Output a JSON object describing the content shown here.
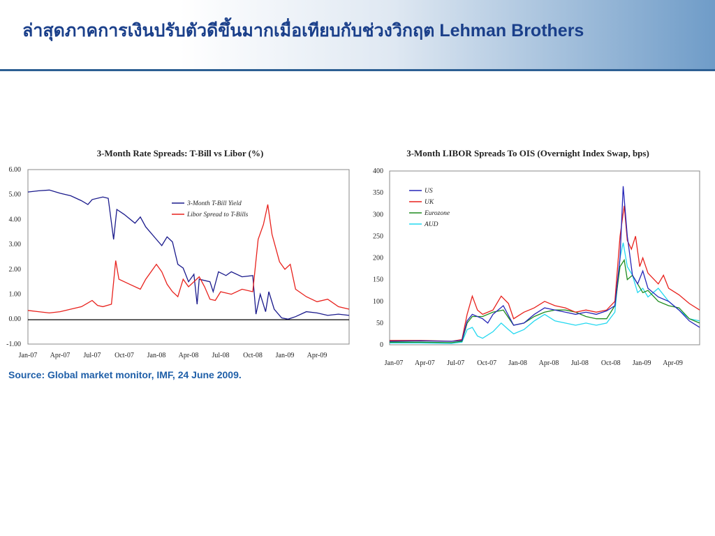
{
  "slide": {
    "title": "ล่าสุดภาคการเงินปรับตัวดีขึ้นมากเมื่อเทียบกับช่วงวิกฤต Lehman Brothers",
    "source": "Source: Global market monitor, IMF, 24 June 2009."
  },
  "chart_data": [
    {
      "type": "line",
      "title": "3-Month Rate Spreads: T-Bill vs Libor (%)",
      "ylim": [
        -1,
        6
      ],
      "xlim": [
        0,
        30
      ],
      "y_ticks": [
        "6.00",
        "5.00",
        "4.00",
        "3.00",
        "2.00",
        "1.00",
        "0.00",
        "-1.00"
      ],
      "x_ticks": [
        "Jan-07",
        "Apr-07",
        "Jul-07",
        "Oct-07",
        "Jan-08",
        "Apr-08",
        "Jul-08",
        "Oct-08",
        "Jan-09",
        "Apr-09"
      ],
      "grid": false,
      "legend_position": "top-right",
      "series": [
        {
          "name": "3-Month T-Bill Yield",
          "color": "#1a1a8c",
          "points": [
            [
              0,
              5.1
            ],
            [
              1,
              5.15
            ],
            [
              2,
              5.18
            ],
            [
              3,
              5.05
            ],
            [
              4,
              4.95
            ],
            [
              5,
              4.75
            ],
            [
              5.6,
              4.6
            ],
            [
              6,
              4.8
            ],
            [
              7,
              4.9
            ],
            [
              7.5,
              4.85
            ],
            [
              8,
              3.2
            ],
            [
              8.3,
              4.4
            ],
            [
              9,
              4.2
            ],
            [
              10,
              3.85
            ],
            [
              10.5,
              4.1
            ],
            [
              11,
              3.7
            ],
            [
              12,
              3.2
            ],
            [
              12.5,
              2.95
            ],
            [
              13,
              3.3
            ],
            [
              13.5,
              3.1
            ],
            [
              14,
              2.2
            ],
            [
              14.5,
              2.05
            ],
            [
              15,
              1.5
            ],
            [
              15.5,
              1.8
            ],
            [
              15.8,
              0.6
            ],
            [
              16,
              1.6
            ],
            [
              17,
              1.5
            ],
            [
              17.3,
              1.1
            ],
            [
              17.8,
              1.9
            ],
            [
              18.5,
              1.75
            ],
            [
              19,
              1.9
            ],
            [
              20,
              1.7
            ],
            [
              21,
              1.75
            ],
            [
              21.3,
              0.2
            ],
            [
              21.7,
              1.0
            ],
            [
              22.2,
              0.3
            ],
            [
              22.5,
              1.1
            ],
            [
              23,
              0.4
            ],
            [
              23.7,
              0.05
            ],
            [
              24.3,
              0.0
            ],
            [
              25,
              0.1
            ],
            [
              26,
              0.3
            ],
            [
              27,
              0.25
            ],
            [
              28,
              0.15
            ],
            [
              29,
              0.2
            ],
            [
              30,
              0.15
            ]
          ]
        },
        {
          "name": "Libor Spread to T-Bills",
          "color": "#e8211c",
          "points": [
            [
              0,
              0.35
            ],
            [
              1,
              0.3
            ],
            [
              2,
              0.25
            ],
            [
              3,
              0.3
            ],
            [
              4,
              0.4
            ],
            [
              5,
              0.5
            ],
            [
              6,
              0.75
            ],
            [
              6.5,
              0.55
            ],
            [
              7,
              0.5
            ],
            [
              7.8,
              0.6
            ],
            [
              8.2,
              2.35
            ],
            [
              8.5,
              1.6
            ],
            [
              9.5,
              1.4
            ],
            [
              10.5,
              1.2
            ],
            [
              11,
              1.6
            ],
            [
              12,
              2.2
            ],
            [
              12.5,
              1.9
            ],
            [
              13,
              1.4
            ],
            [
              13.5,
              1.1
            ],
            [
              14,
              0.9
            ],
            [
              14.5,
              1.6
            ],
            [
              15,
              1.3
            ],
            [
              15.5,
              1.5
            ],
            [
              16,
              1.7
            ],
            [
              16.5,
              1.3
            ],
            [
              17,
              0.8
            ],
            [
              17.5,
              0.75
            ],
            [
              18,
              1.1
            ],
            [
              19,
              1.0
            ],
            [
              20,
              1.2
            ],
            [
              21,
              1.1
            ],
            [
              21.5,
              3.2
            ],
            [
              22,
              3.8
            ],
            [
              22.4,
              4.6
            ],
            [
              22.8,
              3.4
            ],
            [
              23.5,
              2.3
            ],
            [
              24,
              2.0
            ],
            [
              24.5,
              2.2
            ],
            [
              25,
              1.2
            ],
            [
              26,
              0.9
            ],
            [
              27,
              0.7
            ],
            [
              28,
              0.8
            ],
            [
              29,
              0.5
            ],
            [
              30,
              0.4
            ]
          ]
        }
      ]
    },
    {
      "type": "line",
      "title": "3-Month LIBOR Spreads To OIS (Overnight Index Swap, bps)",
      "ylim": [
        0,
        400
      ],
      "xlim": [
        0,
        30
      ],
      "y_ticks": [
        "400",
        "350",
        "300",
        "250",
        "200",
        "150",
        "100",
        "50",
        "0"
      ],
      "x_ticks": [
        "Jan-07",
        "Apr-07",
        "Jul-07",
        "Oct-07",
        "Jan-08",
        "Apr-08",
        "Jul-08",
        "Oct-08",
        "Jan-09",
        "Apr-09"
      ],
      "grid": false,
      "legend_position": "top-left",
      "series": [
        {
          "name": "US",
          "color": "#2626b8",
          "points": [
            [
              0,
              8
            ],
            [
              3,
              9
            ],
            [
              6,
              8
            ],
            [
              7,
              10
            ],
            [
              7.5,
              55
            ],
            [
              8,
              70
            ],
            [
              9,
              60
            ],
            [
              9.5,
              50
            ],
            [
              10,
              70
            ],
            [
              11,
              90
            ],
            [
              12,
              45
            ],
            [
              13,
              50
            ],
            [
              14,
              70
            ],
            [
              15,
              85
            ],
            [
              16,
              80
            ],
            [
              17,
              75
            ],
            [
              18,
              70
            ],
            [
              19,
              75
            ],
            [
              20,
              70
            ],
            [
              21,
              78
            ],
            [
              21.8,
              90
            ],
            [
              22.3,
              200
            ],
            [
              22.6,
              365
            ],
            [
              23,
              250
            ],
            [
              23.5,
              160
            ],
            [
              24,
              140
            ],
            [
              24.5,
              170
            ],
            [
              25,
              130
            ],
            [
              26,
              110
            ],
            [
              27,
              100
            ],
            [
              28,
              80
            ],
            [
              29,
              55
            ],
            [
              30,
              40
            ]
          ]
        },
        {
          "name": "UK",
          "color": "#e8211c",
          "points": [
            [
              0,
              10
            ],
            [
              3,
              10
            ],
            [
              6,
              8
            ],
            [
              7,
              12
            ],
            [
              7.5,
              70
            ],
            [
              8,
              112
            ],
            [
              8.5,
              80
            ],
            [
              9,
              70
            ],
            [
              10,
              80
            ],
            [
              10.8,
              112
            ],
            [
              11.5,
              95
            ],
            [
              12,
              60
            ],
            [
              13,
              75
            ],
            [
              14,
              85
            ],
            [
              15,
              100
            ],
            [
              16,
              90
            ],
            [
              17,
              85
            ],
            [
              18,
              75
            ],
            [
              19,
              80
            ],
            [
              20,
              75
            ],
            [
              21,
              80
            ],
            [
              21.8,
              100
            ],
            [
              22.3,
              250
            ],
            [
              22.7,
              320
            ],
            [
              23,
              240
            ],
            [
              23.4,
              220
            ],
            [
              23.8,
              250
            ],
            [
              24.2,
              180
            ],
            [
              24.5,
              200
            ],
            [
              25,
              165
            ],
            [
              26,
              140
            ],
            [
              26.5,
              160
            ],
            [
              27,
              130
            ],
            [
              28,
              115
            ],
            [
              29,
              95
            ],
            [
              30,
              80
            ]
          ]
        },
        {
          "name": "Eurozone",
          "color": "#1e8c1e",
          "points": [
            [
              0,
              6
            ],
            [
              3,
              6
            ],
            [
              6,
              5
            ],
            [
              7,
              8
            ],
            [
              7.5,
              50
            ],
            [
              8,
              65
            ],
            [
              9,
              65
            ],
            [
              10,
              75
            ],
            [
              11,
              80
            ],
            [
              12,
              45
            ],
            [
              13,
              50
            ],
            [
              14,
              65
            ],
            [
              15,
              75
            ],
            [
              16,
              80
            ],
            [
              17,
              80
            ],
            [
              18,
              75
            ],
            [
              19,
              65
            ],
            [
              20,
              60
            ],
            [
              21,
              60
            ],
            [
              21.8,
              90
            ],
            [
              22.3,
              180
            ],
            [
              22.7,
              195
            ],
            [
              23,
              150
            ],
            [
              23.5,
              160
            ],
            [
              24,
              140
            ],
            [
              24.5,
              120
            ],
            [
              25,
              125
            ],
            [
              26,
              100
            ],
            [
              27,
              90
            ],
            [
              28,
              85
            ],
            [
              29,
              60
            ],
            [
              30,
              50
            ]
          ]
        },
        {
          "name": "AUD",
          "color": "#22d8f0",
          "points": [
            [
              0,
              4
            ],
            [
              3,
              4
            ],
            [
              6,
              3
            ],
            [
              7,
              6
            ],
            [
              7.5,
              35
            ],
            [
              8,
              40
            ],
            [
              8.5,
              20
            ],
            [
              9,
              15
            ],
            [
              10,
              30
            ],
            [
              10.8,
              50
            ],
            [
              11.5,
              35
            ],
            [
              12,
              25
            ],
            [
              13,
              35
            ],
            [
              14,
              55
            ],
            [
              15,
              70
            ],
            [
              16,
              55
            ],
            [
              17,
              50
            ],
            [
              18,
              45
            ],
            [
              19,
              50
            ],
            [
              20,
              45
            ],
            [
              21,
              50
            ],
            [
              21.8,
              75
            ],
            [
              22.3,
              200
            ],
            [
              22.6,
              235
            ],
            [
              23,
              180
            ],
            [
              23.5,
              160
            ],
            [
              24,
              120
            ],
            [
              24.5,
              130
            ],
            [
              25,
              110
            ],
            [
              26,
              130
            ],
            [
              27,
              100
            ],
            [
              28,
              80
            ],
            [
              29,
              60
            ],
            [
              30,
              55
            ]
          ]
        }
      ]
    }
  ]
}
